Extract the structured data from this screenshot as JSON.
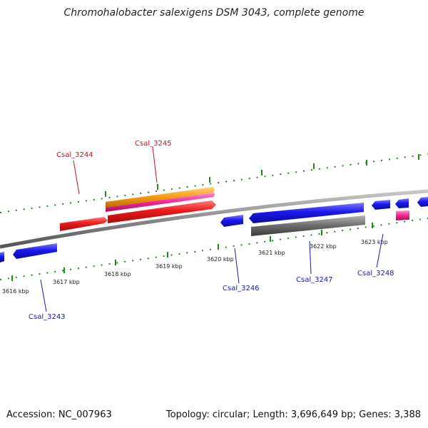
{
  "title": "Chromohalobacter salexigens DSM 3043, complete genome",
  "footer": {
    "accession": "Accession: NC_007963",
    "stats": "Topology: circular; Length: 3,696,649 bp; Genes: 3,388"
  },
  "colors": {
    "forward_gene": "#e8111c",
    "reverse_gene": "#1a14e6",
    "cds_orange": "#f79a0e",
    "cds_pink": "#f0288f",
    "cds_gray": "#6b6b6b",
    "backbone": "#8c8c8c",
    "tick": "#1c8a1c",
    "label_forward": "#c0141a",
    "label_reverse": "#1a18b0"
  },
  "scale_labels": [
    "3616 kbp",
    "3617 kbp",
    "3618 kbp",
    "3619 kbp",
    "3620 kbp",
    "3621 kbp",
    "3622 kbp",
    "3623 kbp"
  ],
  "gene_labels": {
    "forward": [
      "Csal_3244",
      "Csal_3245"
    ],
    "reverse": [
      "Csal_3243",
      "Csal_3246",
      "Csal_3247",
      "Csal_3248"
    ]
  }
}
